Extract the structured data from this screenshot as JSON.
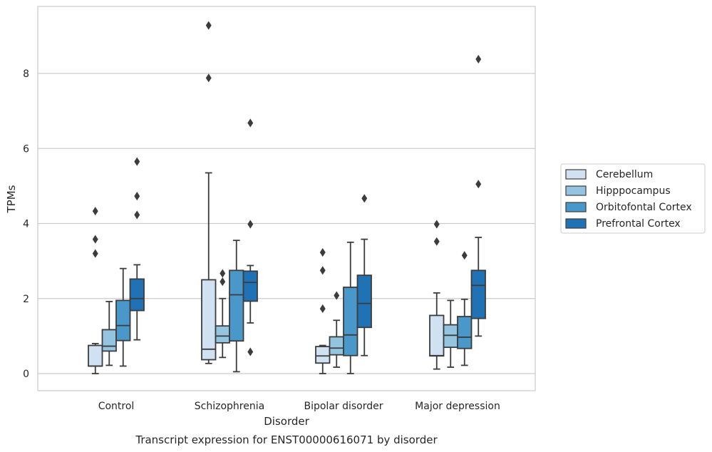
{
  "caption": "Transcript expression for ENST00000616071 by disorder",
  "chart_data": {
    "type": "box",
    "xlabel": "Disorder",
    "ylabel": "TPMs",
    "ylim": [
      -0.45,
      9.8
    ],
    "yticks": [
      0,
      2,
      4,
      6,
      8
    ],
    "grid": true,
    "legend_placement": "center-right outside",
    "categories": [
      "Control",
      "Schizophrenia",
      "Bipolar disorder",
      "Major depression"
    ],
    "series": [
      {
        "name": "Cerebellum",
        "color": "#d0e1f2",
        "boxes": [
          {
            "whislo": 0.0,
            "q1": 0.2,
            "med": 0.2,
            "q3": 0.75,
            "whishi": 0.8,
            "fliers": [
              3.2,
              3.58,
              4.33
            ]
          },
          {
            "whislo": 0.27,
            "q1": 0.37,
            "med": 0.65,
            "q3": 2.5,
            "whishi": 5.35,
            "fliers": [
              7.88,
              9.28
            ]
          },
          {
            "whislo": 0.0,
            "q1": 0.28,
            "med": 0.47,
            "q3": 0.72,
            "whishi": 0.75,
            "fliers": [
              1.73,
              2.75,
              3.23
            ]
          },
          {
            "whislo": 0.12,
            "q1": 0.47,
            "med": 0.48,
            "q3": 1.55,
            "whishi": 2.15,
            "fliers": [
              3.52,
              3.98
            ]
          }
        ]
      },
      {
        "name": "Hipppocampus",
        "color": "#94c4df",
        "boxes": [
          {
            "whislo": 0.22,
            "q1": 0.6,
            "med": 0.73,
            "q3": 1.17,
            "whishi": 1.92,
            "fliers": []
          },
          {
            "whislo": 0.43,
            "q1": 0.82,
            "med": 1.0,
            "q3": 1.27,
            "whishi": 2.0,
            "fliers": [
              2.45,
              2.67
            ]
          },
          {
            "whislo": 0.17,
            "q1": 0.5,
            "med": 0.68,
            "q3": 0.98,
            "whishi": 1.42,
            "fliers": [
              2.08
            ]
          },
          {
            "whislo": 0.17,
            "q1": 0.7,
            "med": 1.02,
            "q3": 1.3,
            "whishi": 1.95,
            "fliers": []
          }
        ]
      },
      {
        "name": "Orbitofontal Cortex",
        "color": "#4a98c9",
        "boxes": [
          {
            "whislo": 0.2,
            "q1": 0.88,
            "med": 1.28,
            "q3": 1.95,
            "whishi": 2.8,
            "fliers": []
          },
          {
            "whislo": 0.05,
            "q1": 0.87,
            "med": 2.1,
            "q3": 2.75,
            "whishi": 3.55,
            "fliers": []
          },
          {
            "whislo": 0.0,
            "q1": 0.48,
            "med": 1.03,
            "q3": 2.3,
            "whishi": 3.5,
            "fliers": []
          },
          {
            "whislo": 0.22,
            "q1": 0.67,
            "med": 0.97,
            "q3": 1.52,
            "whishi": 1.98,
            "fliers": [
              3.15
            ]
          }
        ]
      },
      {
        "name": "Prefrontal Cortex",
        "color": "#2171b5",
        "boxes": [
          {
            "whislo": 0.9,
            "q1": 1.68,
            "med": 2.0,
            "q3": 2.52,
            "whishi": 2.9,
            "fliers": [
              4.23,
              4.73,
              5.65
            ]
          },
          {
            "whislo": 1.35,
            "q1": 1.93,
            "med": 2.43,
            "q3": 2.73,
            "whishi": 2.88,
            "fliers": [
              0.58,
              3.98,
              6.68
            ]
          },
          {
            "whislo": 0.48,
            "q1": 1.23,
            "med": 1.87,
            "q3": 2.62,
            "whishi": 3.58,
            "fliers": [
              4.67
            ]
          },
          {
            "whislo": 1.0,
            "q1": 1.47,
            "med": 2.35,
            "q3": 2.75,
            "whishi": 3.63,
            "fliers": [
              5.05,
              8.38
            ]
          }
        ]
      }
    ]
  }
}
